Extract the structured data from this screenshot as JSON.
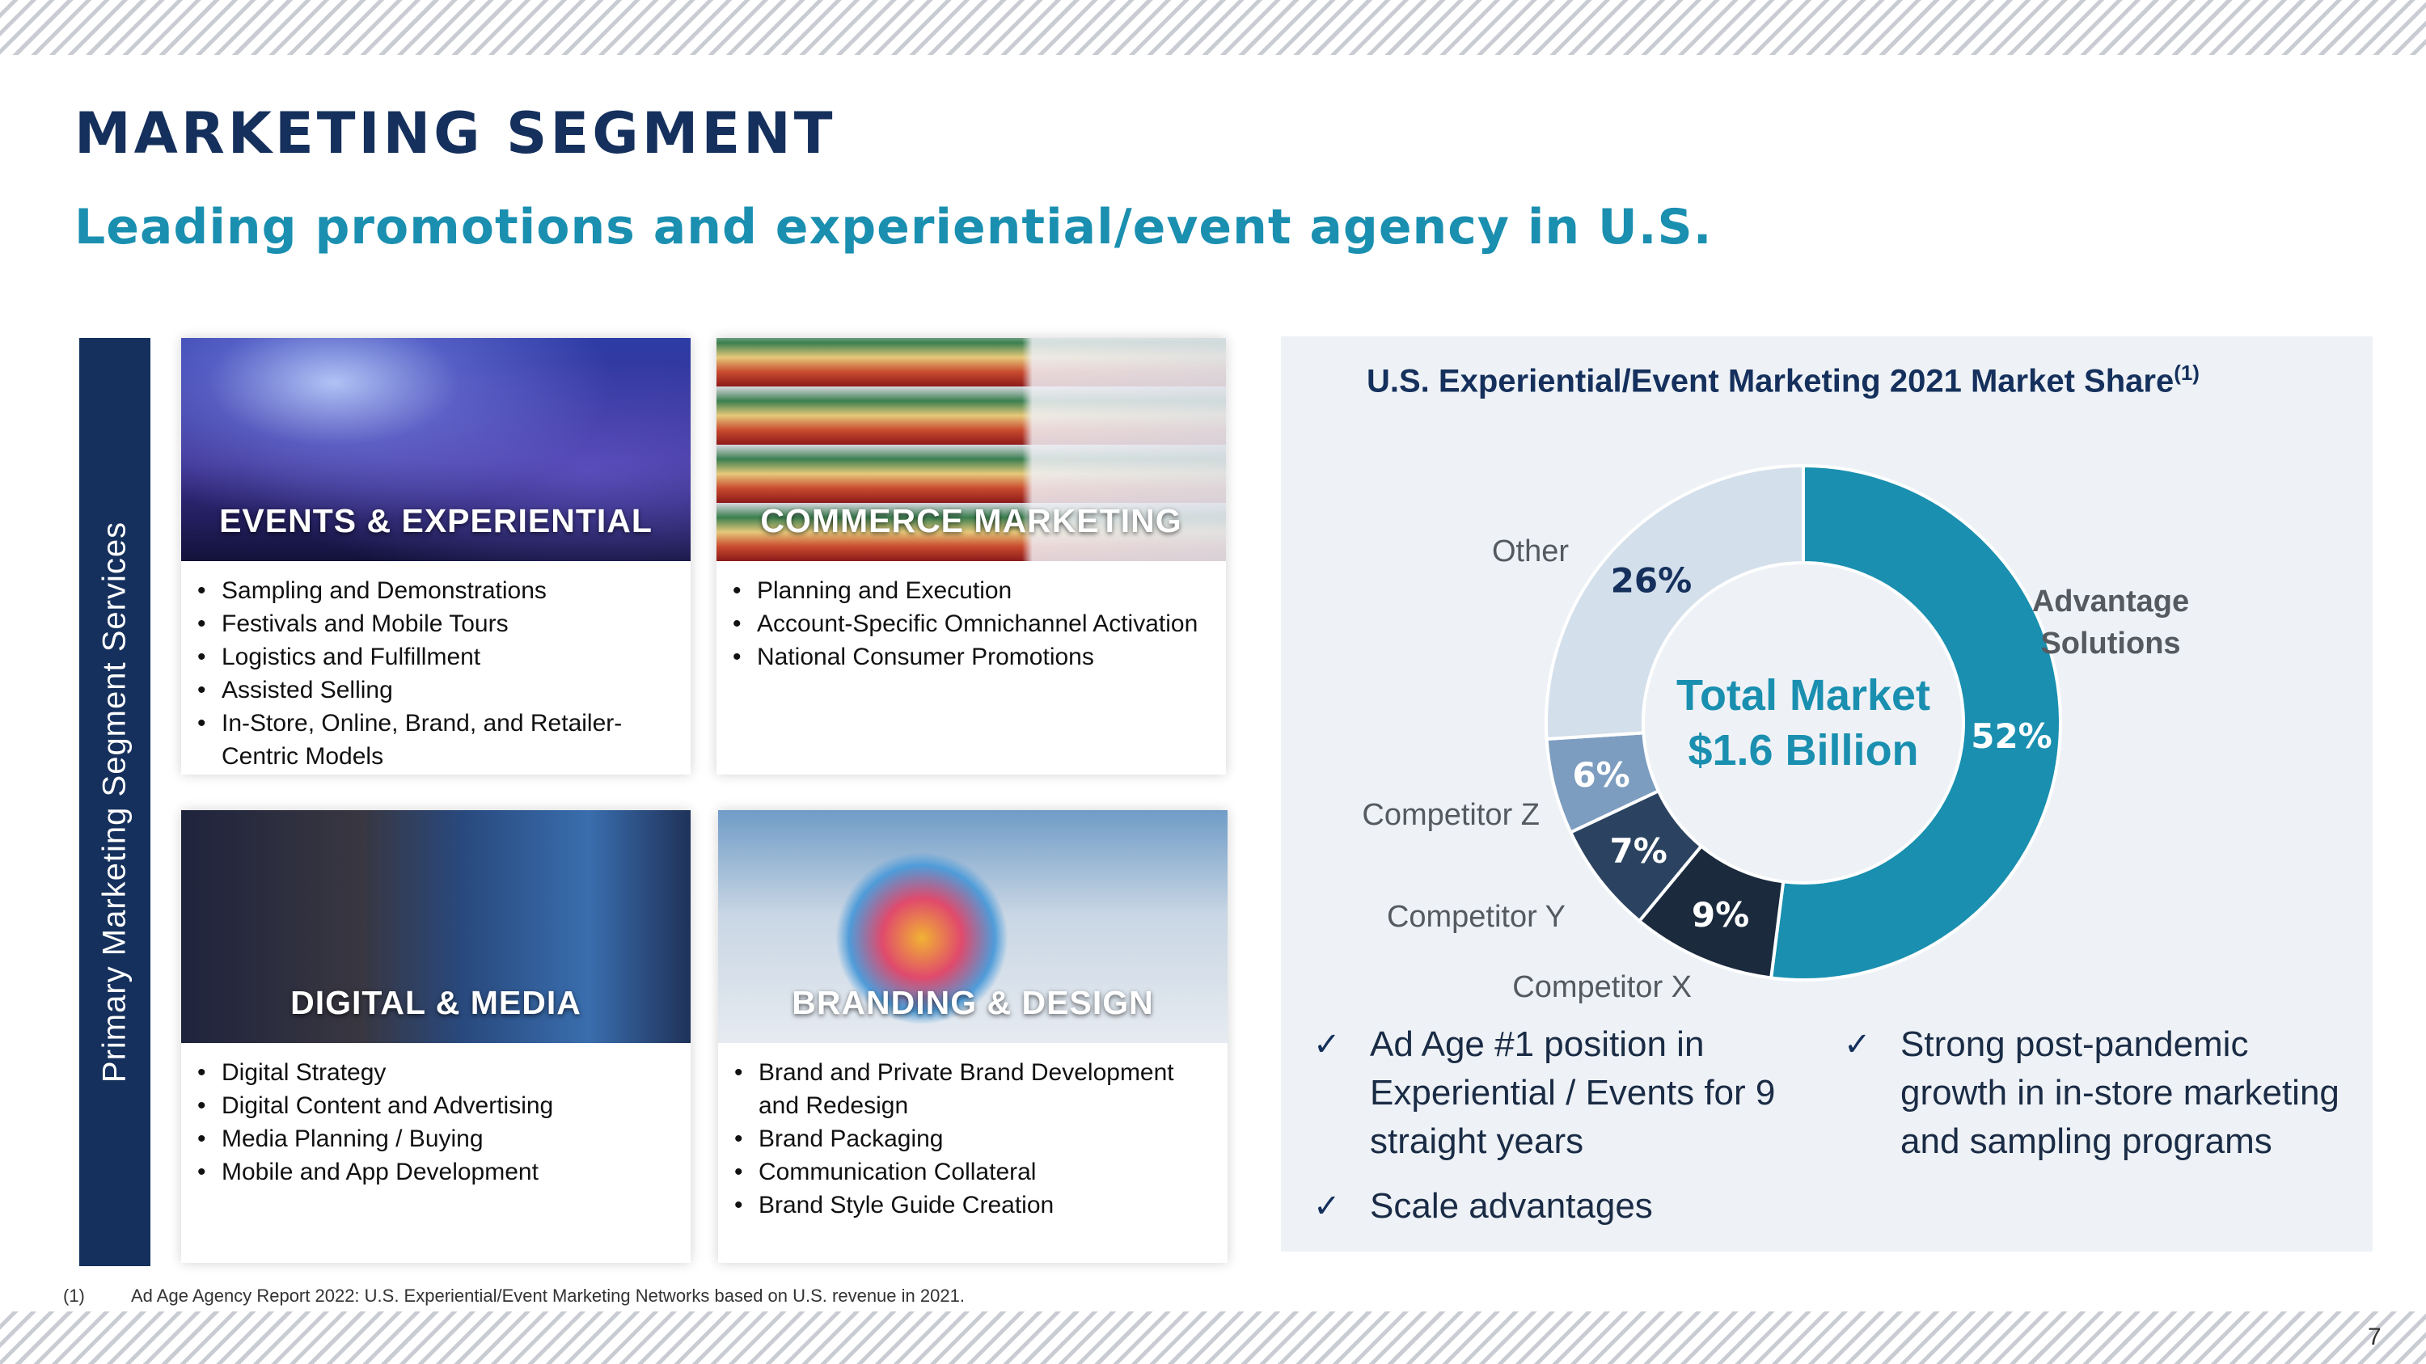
{
  "header": {
    "title": "MARKETING SEGMENT",
    "subtitle": "Leading promotions and experiential/event agency in U.S."
  },
  "sidebar": {
    "label": "Primary Marketing Segment Services"
  },
  "services": [
    {
      "caption": "EVENTS & EXPERIENTIAL",
      "items": [
        "Sampling and Demonstrations",
        "Festivals and Mobile Tours",
        "Logistics and Fulfillment",
        "Assisted Selling",
        "In-Store, Online, Brand, and Retailer-Centric Models"
      ]
    },
    {
      "caption": "COMMERCE MARKETING",
      "items": [
        "Planning and Execution",
        "Account-Specific Omnichannel Activation",
        "National Consumer Promotions"
      ]
    },
    {
      "caption": "DIGITAL & MEDIA",
      "items": [
        "Digital Strategy",
        "Digital Content and Advertising",
        "Media Planning / Buying",
        "Mobile and App Development"
      ]
    },
    {
      "caption": "BRANDING & DESIGN",
      "items": [
        "Brand and Private Brand Development and Redesign",
        "Brand Packaging",
        "Communication Collateral",
        "Brand Style Guide Creation"
      ]
    }
  ],
  "chart_data": {
    "type": "pie",
    "title": "U.S. Experiential/Event Marketing 2021 Market Share",
    "title_sup": "(1)",
    "center_text": [
      "Total Market",
      "$1.6 Billion"
    ],
    "slices": [
      {
        "name": "Advantage Solutions",
        "lines": [
          "Advantage",
          "Solutions"
        ],
        "value": 52,
        "label": "52%",
        "color": "#1a8fb0",
        "text_color": "#ffffff",
        "name_color": "#1a8fb0"
      },
      {
        "name": "Competitor X",
        "lines": [
          "Competitor X"
        ],
        "value": 9,
        "label": "9%",
        "color": "#1b2a3d",
        "text_color": "#ffffff",
        "name_color": "#555a60"
      },
      {
        "name": "Competitor Y",
        "lines": [
          "Competitor Y"
        ],
        "value": 7,
        "label": "7%",
        "color": "#2b4361",
        "text_color": "#ffffff",
        "name_color": "#555a60"
      },
      {
        "name": "Competitor Z",
        "lines": [
          "Competitor Z"
        ],
        "value": 6,
        "label": "6%",
        "color": "#7d9dc0",
        "text_color": "#ffffff",
        "name_color": "#555a60"
      },
      {
        "name": "Other",
        "lines": [
          "Other"
        ],
        "value": 26,
        "label": "26%",
        "color": "#d3dfeb",
        "text_color": "#15305c",
        "name_color": "#555a60"
      }
    ]
  },
  "highlights": {
    "left": [
      "Ad Age #1 position in Experiential / Events for 9 straight years",
      "Scale advantages"
    ],
    "right": [
      "Strong post-pandemic growth in in-store marketing and sampling programs"
    ],
    "check_glyph": "✓"
  },
  "footnote": {
    "number": "(1)",
    "text": "Ad Age Agency Report 2022: U.S. Experiential/Event Marketing Networks based on U.S. revenue in 2021."
  },
  "page_number": "7"
}
